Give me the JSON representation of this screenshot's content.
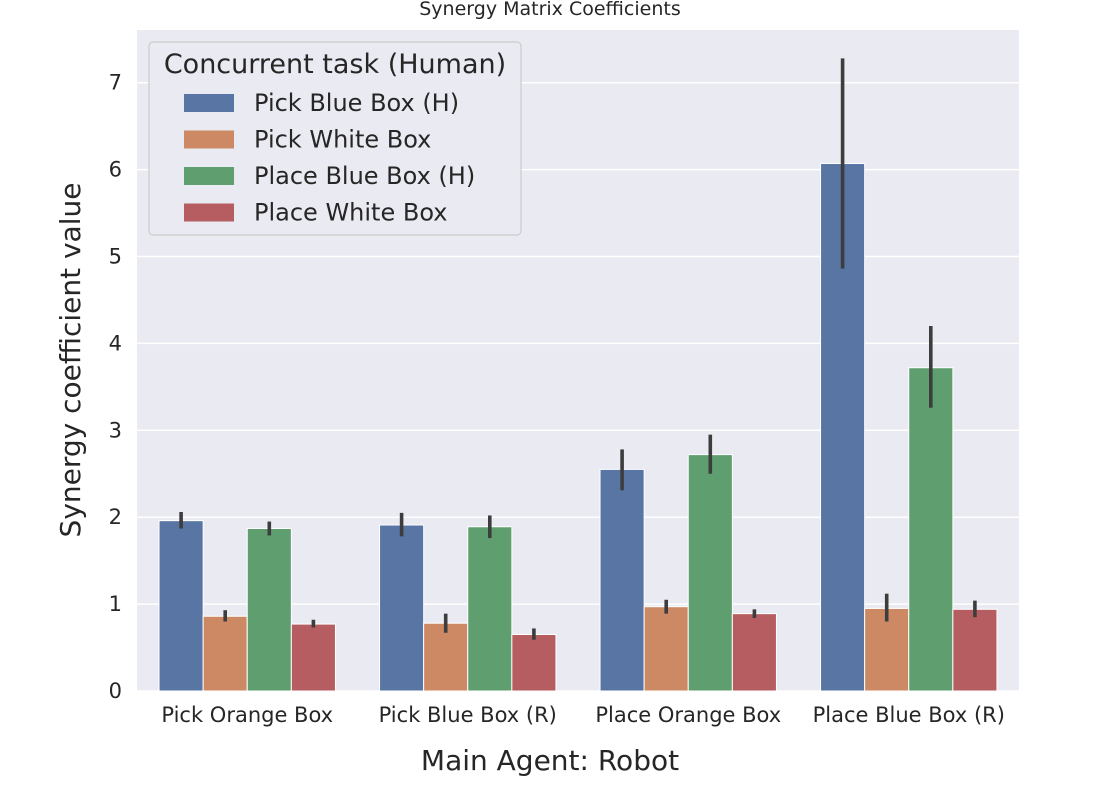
{
  "chart_data": {
    "type": "bar",
    "title": "Synergy Matrix Coefficients",
    "xlabel": "Main Agent: Robot",
    "ylabel": "Synergy coefficient value",
    "ylim": [
      0,
      7.6
    ],
    "yticks": [
      0,
      1,
      2,
      3,
      4,
      5,
      6,
      7
    ],
    "grid": true,
    "legend_title": "Concurrent task (Human)",
    "legend_position": "top-left",
    "categories": [
      "Pick Orange Box",
      "Pick Blue Box (R)",
      "Place Orange Box",
      "Place Blue Box (R)"
    ],
    "series": [
      {
        "name": "Pick Blue Box (H)",
        "color": "#5875a4",
        "values": [
          1.96,
          1.91,
          2.55,
          6.07
        ],
        "error_low": [
          1.87,
          1.78,
          2.31,
          4.86
        ],
        "error_high": [
          2.06,
          2.05,
          2.78,
          7.28
        ]
      },
      {
        "name": "Pick White Box",
        "color": "#cc8963",
        "values": [
          0.86,
          0.78,
          0.97,
          0.95
        ],
        "error_low": [
          0.8,
          0.67,
          0.89,
          0.8
        ],
        "error_high": [
          0.93,
          0.89,
          1.05,
          1.12
        ]
      },
      {
        "name": "Place Blue Box (H)",
        "color": "#5f9e6e",
        "values": [
          1.87,
          1.89,
          2.72,
          3.72
        ],
        "error_low": [
          1.79,
          1.76,
          2.5,
          3.26
        ],
        "error_high": [
          1.95,
          2.02,
          2.95,
          4.2
        ]
      },
      {
        "name": "Place White Box",
        "color": "#b55d60",
        "values": [
          0.77,
          0.65,
          0.89,
          0.94
        ],
        "error_low": [
          0.73,
          0.59,
          0.84,
          0.85
        ],
        "error_high": [
          0.82,
          0.72,
          0.94,
          1.04
        ]
      }
    ]
  }
}
